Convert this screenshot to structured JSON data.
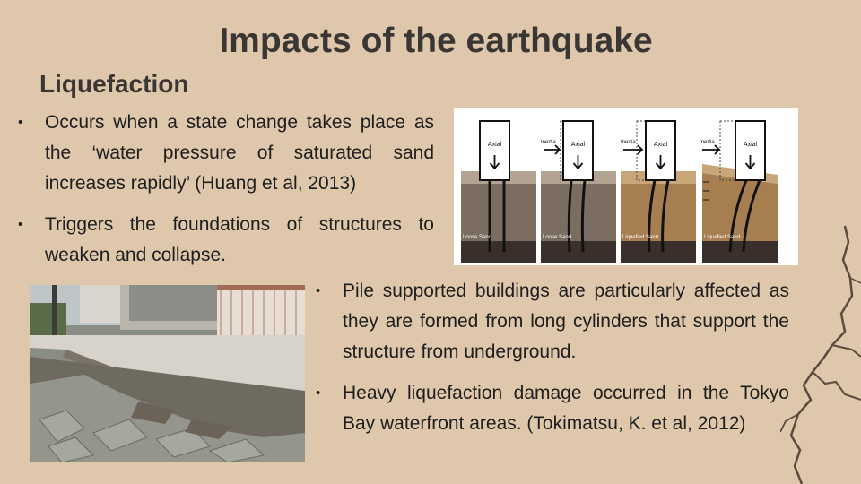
{
  "slide": {
    "title": "Impacts of the earthquake",
    "subtitle": "Liquefaction",
    "left_bullets": [
      "Occurs when a state change takes place as the ‘water pressure of saturated sand increases rapidly’ (Huang et al, 2013)",
      "Triggers the foundations of structures to weaken and collapse."
    ],
    "right_bullets": [
      "Pile supported buildings are particularly affected as they are formed from long cylinders that support the structure from underground.",
      "Heavy liquefaction damage occurred in the Tokyo Bay waterfront areas. (Tokimatsu, K. et al, 2012)"
    ]
  },
  "diagram": {
    "panels": [
      {
        "box_label": "Axial",
        "force_label": "",
        "soil_label": "Loose Sand"
      },
      {
        "box_label": "Axial",
        "force_label": "Inertia",
        "soil_label": "Loose Sand"
      },
      {
        "box_label": "Axial",
        "force_label": "Inertia",
        "soil_label": "Liquefied Sand"
      },
      {
        "box_label": "Axial",
        "force_label": "Inertia",
        "soil_label": "Liquefied Sand"
      }
    ]
  },
  "colors": {
    "background": "#dfc7ab",
    "title_text": "#3a3634",
    "body_text": "#1e1e1e",
    "loose_sand": "#7b6d5f",
    "liquefied_sand": "#a67e50",
    "bedrock": "#3a2f2b"
  }
}
